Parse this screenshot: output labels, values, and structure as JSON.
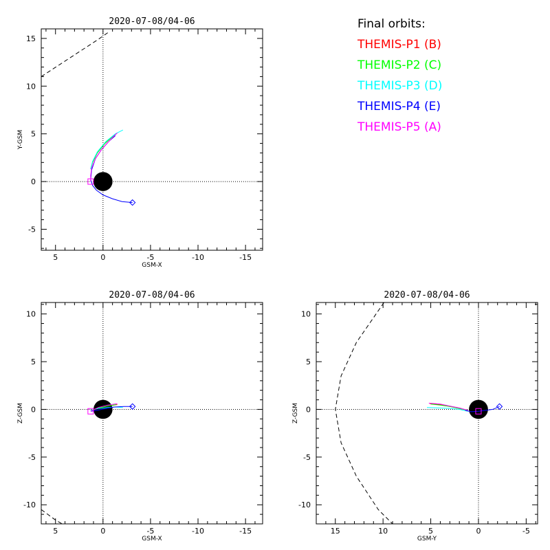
{
  "legend": {
    "title": "Final orbits:",
    "entries": [
      {
        "label": "THEMIS-P1 (B)",
        "color": "#ff0000"
      },
      {
        "label": "THEMIS-P2 (C)",
        "color": "#00ff00"
      },
      {
        "label": "THEMIS-P3 (D)",
        "color": "#00ffff"
      },
      {
        "label": "THEMIS-P4 (E)",
        "color": "#0000ff"
      },
      {
        "label": "THEMIS-P5 (A)",
        "color": "#ff00ff"
      }
    ]
  },
  "chart_data": [
    {
      "type": "line",
      "title": "2020-07-08/04-06",
      "xlabel": "GSM-X",
      "ylabel": "Y-GSM",
      "xlim": [
        6.5,
        -16.8
      ],
      "ylim": [
        -7.2,
        16.0
      ],
      "xticks": [
        5,
        0,
        -5,
        -10,
        -15
      ],
      "xtick_labels": [
        "5",
        "0",
        "-5",
        "-10",
        "-15"
      ],
      "yticks": [
        -5,
        0,
        5,
        10,
        15
      ],
      "ytick_labels": [
        "-5",
        "0",
        "5",
        "10",
        "15"
      ],
      "earth_radius": 1,
      "boundary": {
        "style": "dashed",
        "points": [
          [
            6.5,
            11.0
          ],
          [
            4.5,
            12.3
          ],
          [
            2.5,
            13.6
          ],
          [
            0.5,
            14.9
          ],
          [
            -0.5,
            15.6
          ]
        ]
      },
      "series": [
        {
          "color": "#ff0000",
          "points": [
            [
              1.3,
              1.3
            ],
            [
              1.1,
              2.0
            ],
            [
              0.6,
              3.0
            ],
            [
              -0.2,
              4.0
            ],
            [
              -1.0,
              4.7
            ],
            [
              -1.5,
              5.1
            ]
          ]
        },
        {
          "color": "#00ff00",
          "points": [
            [
              1.3,
              1.3
            ],
            [
              1.1,
              2.0
            ],
            [
              0.6,
              3.0
            ],
            [
              -0.2,
              4.0
            ],
            [
              -1.0,
              4.7
            ],
            [
              -1.4,
              5.0
            ]
          ]
        },
        {
          "color": "#00ffff",
          "points": [
            [
              1.3,
              1.3
            ],
            [
              1.1,
              2.1
            ],
            [
              0.6,
              3.1
            ],
            [
              -0.3,
              4.2
            ],
            [
              -1.3,
              5.0
            ],
            [
              -2.1,
              5.4
            ]
          ]
        },
        {
          "color": "#0000ff",
          "points": [
            [
              -3.1,
              -2.2
            ],
            [
              -2.0,
              -2.1
            ],
            [
              -1.0,
              -1.8
            ],
            [
              0.0,
              -1.4
            ],
            [
              0.7,
              -0.9
            ],
            [
              1.1,
              -0.4
            ],
            [
              1.3,
              0.2
            ],
            [
              1.2,
              1.2
            ],
            [
              0.8,
              2.4
            ],
            [
              0.2,
              3.3
            ],
            [
              -0.6,
              4.2
            ],
            [
              -1.3,
              4.8
            ]
          ]
        },
        {
          "color": "#ff00ff",
          "points": [
            [
              1.3,
              0.0
            ],
            [
              1.3,
              0.6
            ],
            [
              1.2,
              1.4
            ],
            [
              0.8,
              2.4
            ],
            [
              0.2,
              3.3
            ],
            [
              -0.5,
              4.1
            ],
            [
              -1.2,
              4.8
            ],
            [
              -1.5,
              5.1
            ]
          ]
        }
      ],
      "markers": [
        {
          "shape": "diamond",
          "color": "#0000ff",
          "x": -3.1,
          "y": -2.2
        },
        {
          "shape": "square",
          "color": "#ff00ff",
          "x": 1.3,
          "y": 0.0
        }
      ]
    },
    {
      "type": "line",
      "title": "2020-07-08/04-06",
      "xlabel": "GSM-X",
      "ylabel": "Z-GSM",
      "xlim": [
        6.5,
        -16.8
      ],
      "ylim": [
        -12.0,
        11.2
      ],
      "xticks": [
        5,
        0,
        -5,
        -10,
        -15
      ],
      "xtick_labels": [
        "5",
        "0",
        "-5",
        "-10",
        "-15"
      ],
      "yticks": [
        -10,
        -5,
        0,
        5,
        10
      ],
      "ytick_labels": [
        "-10",
        "-5",
        "0",
        "5",
        "10"
      ],
      "earth_radius": 1,
      "boundary": {
        "style": "dashed",
        "points": [
          [
            6.5,
            -10.5
          ],
          [
            5.0,
            -11.6
          ],
          [
            4.3,
            -12.0
          ]
        ]
      },
      "series": [
        {
          "color": "#ff0000",
          "points": [
            [
              1.3,
              -0.1
            ],
            [
              0.5,
              0.15
            ],
            [
              -0.5,
              0.35
            ],
            [
              -1.5,
              0.5
            ]
          ]
        },
        {
          "color": "#00ff00",
          "points": [
            [
              1.3,
              -0.1
            ],
            [
              0.5,
              0.15
            ],
            [
              -0.5,
              0.35
            ],
            [
              -1.4,
              0.5
            ]
          ]
        },
        {
          "color": "#00ffff",
          "points": [
            [
              1.3,
              -0.1
            ],
            [
              0.5,
              0.1
            ],
            [
              -0.5,
              0.2
            ],
            [
              -1.3,
              0.25
            ],
            [
              -2.1,
              0.2
            ]
          ]
        },
        {
          "color": "#0000ff",
          "points": [
            [
              1.3,
              -0.2
            ],
            [
              0.6,
              -0.1
            ],
            [
              -0.3,
              0.1
            ],
            [
              -1.2,
              0.25
            ],
            [
              -2.2,
              0.3
            ],
            [
              -3.1,
              0.3
            ]
          ]
        },
        {
          "color": "#ff00ff",
          "points": [
            [
              1.3,
              -0.2
            ],
            [
              0.5,
              0.2
            ],
            [
              -0.5,
              0.45
            ],
            [
              -1.5,
              0.6
            ]
          ]
        }
      ],
      "markers": [
        {
          "shape": "diamond",
          "color": "#0000ff",
          "x": -3.1,
          "y": 0.3
        },
        {
          "shape": "square",
          "color": "#ff00ff",
          "x": 1.3,
          "y": -0.2
        }
      ]
    },
    {
      "type": "line",
      "title": "2020-07-08/04-06",
      "xlabel": "GSM-Y",
      "ylabel": "Z-GSM",
      "xlim": [
        17.0,
        -6.2
      ],
      "ylim": [
        -12.0,
        11.2
      ],
      "xticks": [
        15,
        10,
        5,
        0,
        -5
      ],
      "xtick_labels": [
        "15",
        "10",
        "5",
        "0",
        "-5"
      ],
      "yticks": [
        -10,
        -5,
        0,
        5,
        10
      ],
      "ytick_labels": [
        "-10",
        "-5",
        "0",
        "5",
        "10"
      ],
      "earth_radius": 1,
      "boundary": {
        "style": "dashed",
        "points": [
          [
            9.9,
            11.2
          ],
          [
            12.8,
            7.0
          ],
          [
            14.4,
            3.5
          ],
          [
            15.0,
            0.0
          ],
          [
            14.4,
            -3.5
          ],
          [
            12.8,
            -7.0
          ],
          [
            10.5,
            -10.5
          ],
          [
            9.0,
            -12.0
          ]
        ]
      },
      "series": [
        {
          "color": "#ff0000",
          "points": [
            [
              1.1,
              -0.1
            ],
            [
              2.0,
              0.1
            ],
            [
              3.0,
              0.3
            ],
            [
              4.0,
              0.5
            ],
            [
              5.1,
              0.6
            ]
          ]
        },
        {
          "color": "#00ff00",
          "points": [
            [
              1.1,
              -0.1
            ],
            [
              2.0,
              0.1
            ],
            [
              3.0,
              0.3
            ],
            [
              4.0,
              0.45
            ],
            [
              5.0,
              0.55
            ]
          ]
        },
        {
          "color": "#00ffff",
          "points": [
            [
              1.1,
              -0.2
            ],
            [
              2.0,
              0.0
            ],
            [
              3.0,
              0.1
            ],
            [
              4.0,
              0.15
            ],
            [
              5.4,
              0.2
            ]
          ]
        },
        {
          "color": "#0000ff",
          "points": [
            [
              1.4,
              -0.1
            ],
            [
              0.8,
              -0.25
            ],
            [
              0.0,
              -0.2
            ],
            [
              -0.8,
              -0.1
            ],
            [
              -1.5,
              0.0
            ],
            [
              -2.2,
              0.3
            ]
          ]
        },
        {
          "color": "#ff00ff",
          "points": [
            [
              1.1,
              -0.1
            ],
            [
              2.0,
              0.15
            ],
            [
              3.0,
              0.35
            ],
            [
              4.0,
              0.55
            ],
            [
              5.2,
              0.65
            ]
          ]
        }
      ],
      "markers": [
        {
          "shape": "diamond",
          "color": "#0000ff",
          "x": -2.2,
          "y": 0.3
        },
        {
          "shape": "square",
          "color": "#ff00ff",
          "x": 0.0,
          "y": -0.2
        }
      ]
    }
  ]
}
